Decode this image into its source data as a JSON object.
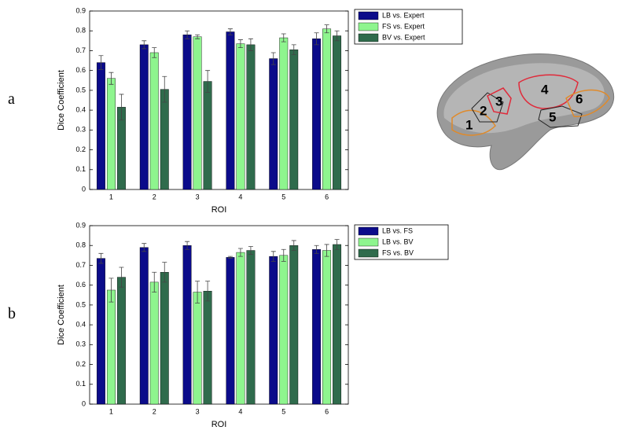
{
  "chart_data": [
    {
      "type": "bar",
      "panel": "a",
      "xlabel": "ROI",
      "ylabel": "Dice Coefficient",
      "categories": [
        "1",
        "2",
        "3",
        "4",
        "5",
        "6"
      ],
      "ylim": [
        0,
        0.9
      ],
      "yticks": [
        0,
        0.1,
        0.2,
        0.3,
        0.4,
        0.5,
        0.6,
        0.7,
        0.8,
        0.9
      ],
      "series": [
        {
          "name": "LB vs. Expert",
          "color": "#0b0b8a",
          "values": [
            0.64,
            0.73,
            0.78,
            0.795,
            0.66,
            0.76
          ],
          "errors": [
            0.035,
            0.02,
            0.02,
            0.015,
            0.03,
            0.03
          ]
        },
        {
          "name": "FS vs. Expert",
          "color": "#8ef58e",
          "values": [
            0.56,
            0.69,
            0.77,
            0.735,
            0.765,
            0.81
          ],
          "errors": [
            0.03,
            0.025,
            0.01,
            0.02,
            0.02,
            0.02
          ]
        },
        {
          "name": "BV vs. Expert",
          "color": "#2f6b4c",
          "values": [
            0.415,
            0.505,
            0.545,
            0.73,
            0.705,
            0.775
          ],
          "errors": [
            0.065,
            0.065,
            0.055,
            0.03,
            0.025,
            0.025
          ]
        }
      ]
    },
    {
      "type": "bar",
      "panel": "b",
      "xlabel": "ROI",
      "ylabel": "Dice Coefficient",
      "categories": [
        "1",
        "2",
        "3",
        "4",
        "5",
        "6"
      ],
      "ylim": [
        0,
        0.9
      ],
      "yticks": [
        0,
        0.1,
        0.2,
        0.3,
        0.4,
        0.5,
        0.6,
        0.7,
        0.8,
        0.9
      ],
      "series": [
        {
          "name": "LB vs. FS",
          "color": "#0b0b8a",
          "values": [
            0.735,
            0.79,
            0.8,
            0.74,
            0.745,
            0.78
          ],
          "errors": [
            0.025,
            0.02,
            0.02,
            0.005,
            0.025,
            0.02
          ]
        },
        {
          "name": "LB vs. BV",
          "color": "#8ef58e",
          "values": [
            0.575,
            0.615,
            0.565,
            0.765,
            0.75,
            0.775
          ],
          "errors": [
            0.06,
            0.05,
            0.055,
            0.02,
            0.03,
            0.03
          ]
        },
        {
          "name": "FS vs. BV",
          "color": "#2f6b4c",
          "values": [
            0.64,
            0.665,
            0.57,
            0.775,
            0.8,
            0.805
          ],
          "errors": [
            0.05,
            0.05,
            0.05,
            0.02,
            0.025,
            0.025
          ]
        }
      ]
    }
  ],
  "brain_labels": [
    "1",
    "2",
    "3",
    "4",
    "5",
    "6"
  ]
}
